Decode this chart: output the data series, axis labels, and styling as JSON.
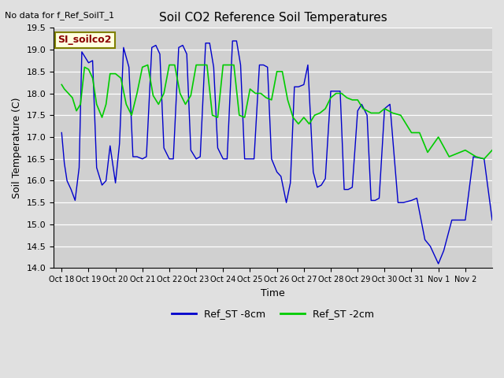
{
  "title": "Soil CO2 Reference Soil Temperatures",
  "xlabel": "Time",
  "ylabel": "Soil Temperature (C)",
  "note": "No data for f_Ref_SoilT_1",
  "site_label": "SI_soilco2",
  "ylim": [
    14.0,
    19.5
  ],
  "yticks": [
    14.0,
    14.5,
    15.0,
    15.5,
    16.0,
    16.5,
    17.0,
    17.5,
    18.0,
    18.5,
    19.0,
    19.5
  ],
  "legend_labels": [
    "Ref_ST -8cm",
    "Ref_ST -2cm"
  ],
  "line_colors": [
    "#0000cc",
    "#00cc00"
  ],
  "fig_bg_color": "#e0e0e0",
  "plot_bg_color": "#d0d0d0",
  "x_tick_labels": [
    "Oct 18",
    "Oct 19",
    "Oct 20",
    "Oct 21",
    "Oct 22",
    "Oct 23",
    "Oct 24",
    "Oct 25",
    "Oct 26",
    "Oct 27",
    "Oct 28",
    "Oct 29",
    "Oct 30",
    "Oct 31",
    "Nov 1",
    "Nov 2"
  ],
  "blue_x": [
    0.0,
    0.1,
    0.2,
    0.35,
    0.5,
    0.65,
    0.75,
    1.0,
    1.15,
    1.3,
    1.5,
    1.65,
    1.8,
    2.0,
    2.15,
    2.3,
    2.5,
    2.65,
    2.8,
    3.0,
    3.15,
    3.35,
    3.5,
    3.65,
    3.8,
    4.0,
    4.15,
    4.35,
    4.5,
    4.65,
    4.8,
    5.0,
    5.15,
    5.35,
    5.5,
    5.65,
    5.8,
    6.0,
    6.15,
    6.35,
    6.5,
    6.65,
    6.8,
    7.0,
    7.15,
    7.35,
    7.5,
    7.65,
    7.8,
    8.0,
    8.15,
    8.35,
    8.5,
    8.65,
    8.8,
    9.0,
    9.15,
    9.35,
    9.5,
    9.65,
    9.8,
    10.0,
    10.15,
    10.35,
    10.5,
    10.65,
    10.8,
    11.0,
    11.15,
    11.35,
    11.5,
    11.65,
    11.8,
    12.0,
    12.2,
    12.5,
    12.7,
    13.0,
    13.2,
    13.5,
    13.7,
    14.0,
    14.2,
    14.5,
    14.7,
    15.0,
    15.3,
    15.7,
    16.0
  ],
  "blue_y": [
    17.1,
    16.4,
    16.0,
    15.8,
    15.55,
    16.3,
    18.95,
    18.7,
    18.75,
    16.3,
    15.9,
    16.0,
    16.8,
    15.95,
    16.85,
    19.05,
    18.6,
    16.55,
    16.55,
    16.5,
    16.55,
    19.05,
    19.1,
    18.9,
    16.75,
    16.5,
    16.5,
    19.05,
    19.1,
    18.9,
    16.7,
    16.5,
    16.55,
    19.15,
    19.15,
    18.6,
    16.75,
    16.5,
    16.5,
    19.2,
    19.2,
    18.65,
    16.5,
    16.5,
    16.5,
    18.65,
    18.65,
    18.6,
    16.5,
    16.2,
    16.1,
    15.5,
    15.95,
    18.15,
    18.15,
    18.2,
    18.65,
    16.2,
    15.85,
    15.9,
    16.05,
    18.05,
    18.05,
    18.05,
    15.8,
    15.8,
    15.85,
    17.6,
    17.75,
    17.5,
    15.55,
    15.55,
    15.6,
    17.65,
    17.75,
    15.5,
    15.5,
    15.55,
    15.6,
    14.65,
    14.5,
    14.1,
    14.4,
    15.1,
    15.1,
    15.1,
    16.55,
    16.5,
    15.1
  ],
  "green_x": [
    0.0,
    0.1,
    0.25,
    0.4,
    0.55,
    0.7,
    0.85,
    1.0,
    1.15,
    1.3,
    1.5,
    1.65,
    1.8,
    2.0,
    2.2,
    2.4,
    2.6,
    2.8,
    3.0,
    3.2,
    3.4,
    3.6,
    3.8,
    4.0,
    4.2,
    4.4,
    4.6,
    4.8,
    5.0,
    5.2,
    5.4,
    5.6,
    5.8,
    6.0,
    6.2,
    6.4,
    6.6,
    6.8,
    7.0,
    7.2,
    7.4,
    7.6,
    7.8,
    8.0,
    8.2,
    8.4,
    8.6,
    8.8,
    9.0,
    9.2,
    9.4,
    9.6,
    9.8,
    10.0,
    10.2,
    10.4,
    10.6,
    10.8,
    11.0,
    11.2,
    11.5,
    11.8,
    12.0,
    12.3,
    12.6,
    13.0,
    13.3,
    13.6,
    14.0,
    14.4,
    14.8,
    15.0,
    15.4,
    15.7,
    16.0
  ],
  "green_y": [
    18.2,
    18.1,
    18.0,
    17.9,
    17.6,
    17.75,
    18.6,
    18.55,
    18.35,
    17.75,
    17.45,
    17.75,
    18.45,
    18.45,
    18.35,
    17.75,
    17.5,
    18.0,
    18.6,
    18.65,
    17.95,
    17.75,
    18.0,
    18.65,
    18.65,
    18.0,
    17.75,
    17.95,
    18.65,
    18.65,
    18.65,
    17.5,
    17.45,
    18.65,
    18.65,
    18.65,
    17.5,
    17.45,
    18.1,
    18.0,
    18.0,
    17.9,
    17.85,
    18.5,
    18.5,
    17.85,
    17.45,
    17.3,
    17.45,
    17.3,
    17.5,
    17.55,
    17.65,
    17.9,
    18.0,
    18.0,
    17.9,
    17.85,
    17.85,
    17.65,
    17.55,
    17.55,
    17.65,
    17.55,
    17.5,
    17.1,
    17.1,
    16.65,
    17.0,
    16.55,
    16.65,
    16.7,
    16.55,
    16.5,
    16.7
  ]
}
